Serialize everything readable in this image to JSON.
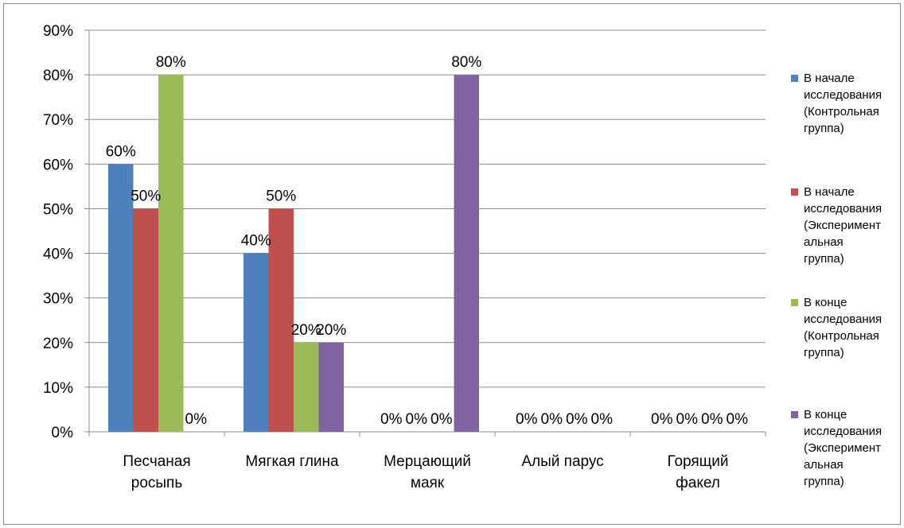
{
  "chart_data": {
    "type": "bar",
    "categories": [
      [
        "Песчаная",
        "росыпь"
      ],
      [
        "Мягкая глина"
      ],
      [
        "Мерцающий",
        "маяк"
      ],
      [
        "Алый парус"
      ],
      [
        "Горящий",
        "факел"
      ]
    ],
    "series": [
      {
        "name_lines": [
          "В начале",
          "исследования",
          "(Контрольная",
          "группа)"
        ],
        "color": "#4f81bd",
        "values": [
          60,
          40,
          0,
          0,
          0
        ],
        "labels": [
          "60%",
          "40%",
          "0%",
          "0%",
          "0%"
        ]
      },
      {
        "name_lines": [
          "В начале",
          "исследования",
          "(Эксперимент",
          "альная",
          "группа)"
        ],
        "color": "#c0504d",
        "values": [
          50,
          50,
          0,
          0,
          0
        ],
        "labels": [
          "50%",
          "50%",
          "0%",
          "0%",
          "0%"
        ]
      },
      {
        "name_lines": [
          "В конце",
          "исследования",
          "(Контрольная",
          "группа)"
        ],
        "color": "#9bbb59",
        "values": [
          80,
          20,
          0,
          0,
          0
        ],
        "labels": [
          "80%",
          "20%",
          "0%",
          "0%",
          "0%"
        ]
      },
      {
        "name_lines": [
          "В конце",
          "исследования",
          "(Эксперимент",
          "альная",
          "группа)"
        ],
        "color": "#8064a2",
        "values": [
          0,
          20,
          80,
          0,
          0
        ],
        "labels": [
          "0%",
          "20%",
          "80%",
          "0%",
          "0%"
        ]
      }
    ],
    "yticks": [
      "0%",
      "10%",
      "20%",
      "30%",
      "40%",
      "50%",
      "60%",
      "70%",
      "80%",
      "90%"
    ],
    "ylim": [
      0,
      90
    ],
    "grid": true,
    "legend_position": "right"
  }
}
